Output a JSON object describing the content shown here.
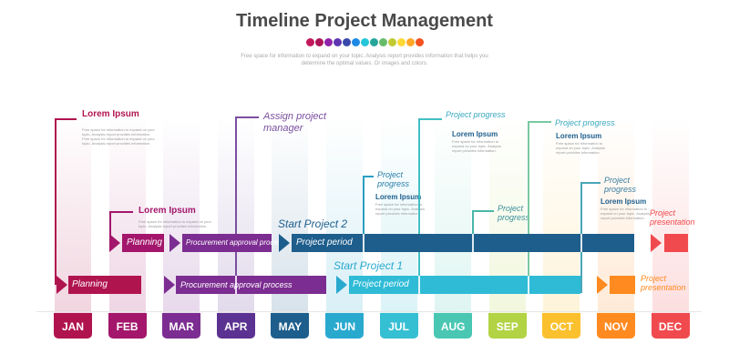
{
  "header": {
    "title": "Timeline Project Management",
    "description": "Free space for information to expand on your topic. Analysis report provides information that helps you determine the optimal values. Or images and colors.",
    "dot_colors": [
      "#c2185b",
      "#ad1457",
      "#8e24aa",
      "#5e35b1",
      "#3949ab",
      "#1e88e5",
      "#26c6da",
      "#26a69a",
      "#66bb6a",
      "#c0ca33",
      "#fdd835",
      "#ffa726",
      "#f4511e"
    ]
  },
  "months": [
    {
      "label": "JAN",
      "color": "#b0144f"
    },
    {
      "label": "FEB",
      "color": "#a3166b"
    },
    {
      "label": "MAR",
      "color": "#7c2d91"
    },
    {
      "label": "APR",
      "color": "#5b3291"
    },
    {
      "label": "MAY",
      "color": "#1e5e8c"
    },
    {
      "label": "JUN",
      "color": "#2aa9cf"
    },
    {
      "label": "JUL",
      "color": "#35bfd3"
    },
    {
      "label": "AUG",
      "color": "#49c7b3"
    },
    {
      "label": "SEP",
      "color": "#b2d343"
    },
    {
      "label": "OCT",
      "color": "#fbc02d"
    },
    {
      "label": "NOV",
      "color": "#ff8a1f"
    },
    {
      "label": "DEC",
      "color": "#f04a4e"
    }
  ],
  "notes": {
    "jan": {
      "heading": "Lorem Ipsum",
      "body": "Free space for information to expand on your topic. Analysis report provides information. Free space for information to expand on your topic. Analysis report provides information."
    },
    "feb": {
      "heading": "Lorem Ipsum",
      "body": "Free space for information to expand on your topic. Analysis report provides information."
    },
    "apr": {
      "text": "Assign project manager"
    },
    "jul": {
      "label": "Project progress",
      "heading": "Lorem Ipsum",
      "body": "Free space for information to expand on your topic. Analysis report provides information."
    },
    "aug": {
      "label": "Project progress",
      "heading": "Lorem Ipsum",
      "body": "Free space for information to expand on your topic. Analysis report provides information."
    },
    "sep": {
      "label": "Project progress"
    },
    "oct": {
      "label": "Project progress",
      "heading": "Lorem Ipsum",
      "body": "Free space for information to expand on your topic. Analysis report provides information."
    },
    "nov": {
      "label": "Project progress",
      "heading": "Lorem Ipsum",
      "body": "Free space for information to expand on your topic. Analysis report provides information."
    }
  },
  "project2": {
    "start_label": "Start Project 2",
    "planning": "Planning",
    "procurement": "Procurement approval process",
    "period": "Project period",
    "end_label": "Project presentation"
  },
  "project1": {
    "start_label": "Start Project 1",
    "planning": "Planning",
    "procurement": "Procurement approval process",
    "period": "Project period",
    "end_label": "Project presentation"
  }
}
